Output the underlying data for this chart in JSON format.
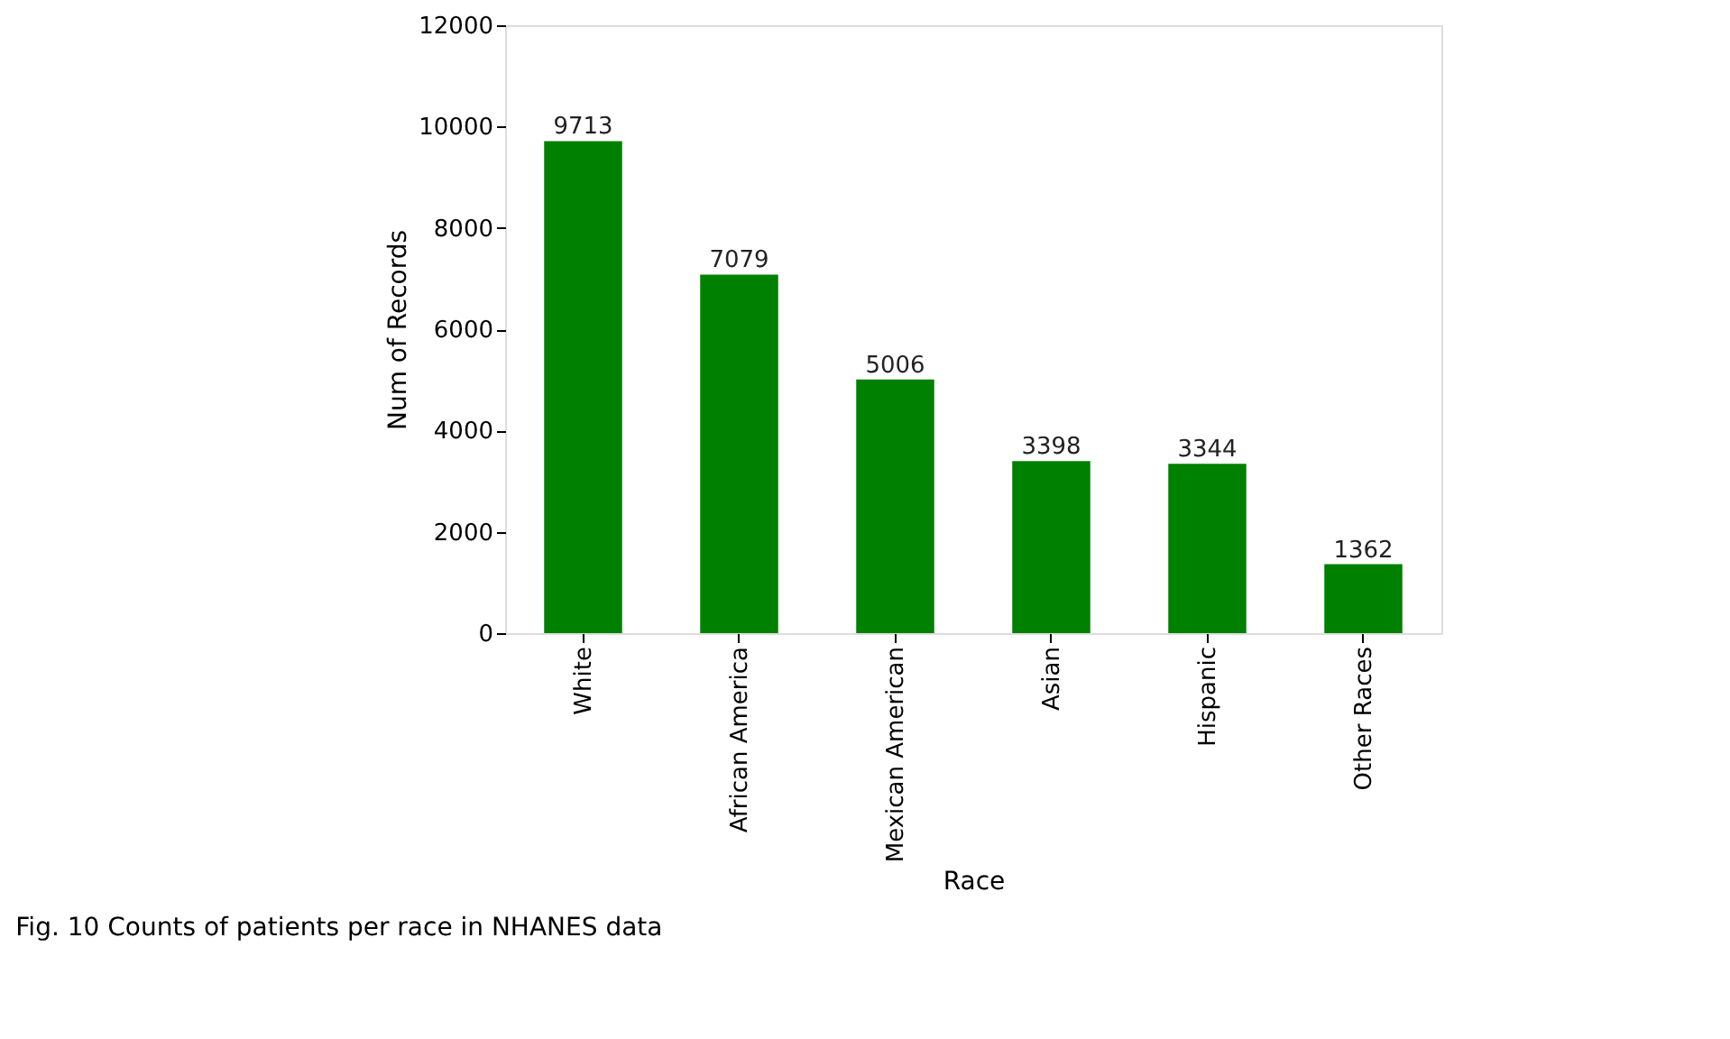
{
  "chart_data": {
    "type": "bar",
    "categories": [
      "White",
      "African America",
      "Mexican American",
      "Asian",
      "Hispanic",
      "Other Races"
    ],
    "values": [
      9713,
      7079,
      5006,
      3398,
      3344,
      1362
    ],
    "color": "#008000",
    "xlabel": "Race",
    "ylabel": "Num of Records",
    "ylim": [
      0,
      12000
    ],
    "yticks": [
      0,
      2000,
      4000,
      6000,
      8000,
      10000,
      12000
    ],
    "data_labels": true,
    "grid": false,
    "annotations": [
      "Fig. 10  Counts of patients per race in NHANES data"
    ]
  }
}
